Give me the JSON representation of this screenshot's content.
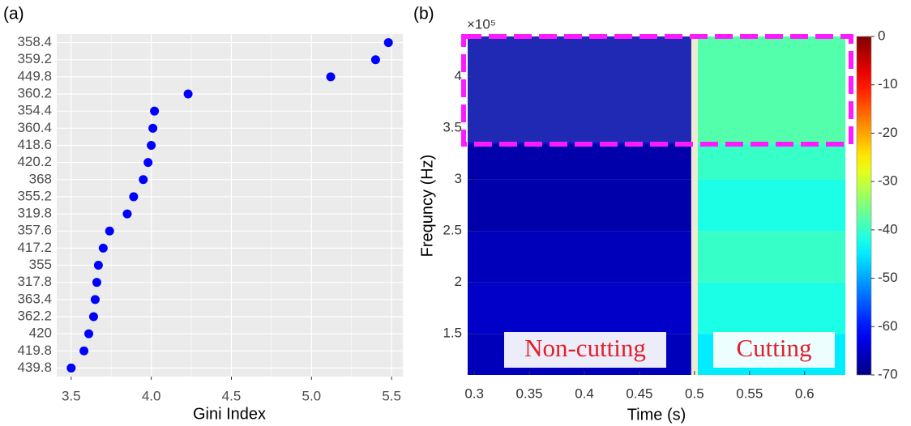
{
  "chart_data": [
    {
      "type": "scatter",
      "panel_label": "(a)",
      "xlabel": "Gini Index",
      "categories": [
        "358.4",
        "359.2",
        "449.8",
        "360.2",
        "354.4",
        "360.4",
        "418.6",
        "420.2",
        "368",
        "355.2",
        "319.8",
        "357.6",
        "417.2",
        "355",
        "317.8",
        "363.4",
        "362.2",
        "420",
        "419.8",
        "439.8"
      ],
      "values": [
        5.48,
        5.4,
        5.12,
        4.23,
        4.02,
        4.01,
        4.0,
        3.98,
        3.95,
        3.89,
        3.85,
        3.74,
        3.7,
        3.67,
        3.66,
        3.65,
        3.64,
        3.61,
        3.58,
        3.5
      ],
      "color": "#0000ff",
      "xlim": [
        3.41,
        5.57
      ],
      "xticks": [
        3.5,
        {
          "value": 4,
          "label": "4.0"
        },
        4.5,
        {
          "value": 5,
          "label": "5.0"
        },
        5.5
      ],
      "grid": true
    },
    {
      "type": "heatmap",
      "panel_label": "(b)",
      "xlabel": "Time (s)",
      "ylabel": "Frequncy (Hz)",
      "y_offset_label": "×10⁵",
      "x_edges": [
        0.294,
        0.497,
        0.503,
        0.637
      ],
      "y_edges": [
        1.1,
        1.5,
        2,
        2.5,
        3,
        3.35,
        4.39
      ],
      "values": [
        [
          -66,
          null,
          -45
        ],
        [
          -65,
          null,
          -42
        ],
        [
          -66,
          null,
          -40
        ],
        [
          -67,
          null,
          -42
        ],
        [
          -67,
          null,
          -40
        ],
        [
          -63,
          null,
          -38
        ]
      ],
      "colormap": "jet",
      "clim": [
        -70,
        0
      ],
      "colorbar_ticks": [
        0,
        -10,
        -20,
        -30,
        -40,
        -50,
        -60,
        -70
      ],
      "xlim": [
        0.294,
        0.637
      ],
      "ylim": [
        1.1,
        4.39
      ],
      "xticks": [
        0.3,
        0.35,
        0.4,
        0.45,
        0.5,
        0.55,
        0.6
      ],
      "yticks": [
        1.5,
        2,
        2.5,
        3,
        3.5,
        4
      ],
      "annotations": [
        "Non-cutting",
        "Cutting"
      ]
    }
  ]
}
